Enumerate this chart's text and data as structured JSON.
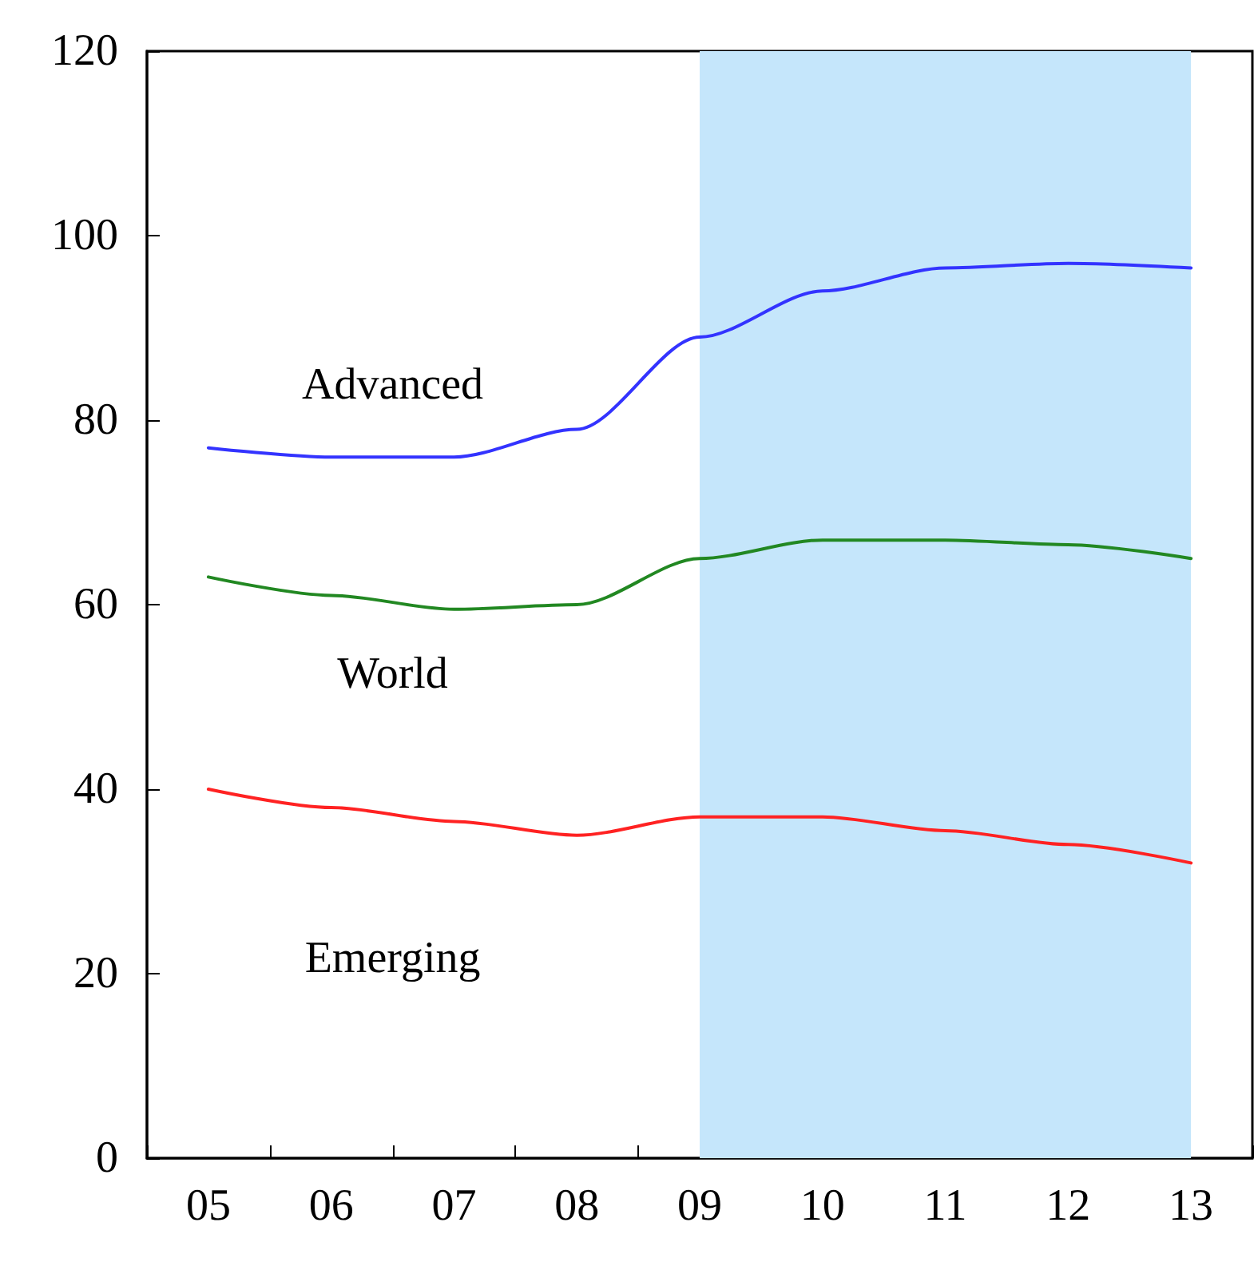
{
  "chart_data": {
    "type": "line",
    "categories": [
      "05",
      "06",
      "07",
      "08",
      "09",
      "10",
      "11",
      "12",
      "13"
    ],
    "series": [
      {
        "name": "Advanced",
        "color": "#3333ff",
        "values": [
          77,
          76,
          76,
          79,
          89,
          94,
          96.5,
          97,
          96.5
        ]
      },
      {
        "name": "World",
        "color": "#228822",
        "values": [
          63,
          61,
          59.5,
          60,
          65,
          67,
          67,
          66.5,
          65
        ]
      },
      {
        "name": "Emerging",
        "color": "#ff2222",
        "values": [
          40,
          38,
          36.5,
          35,
          37,
          37,
          35.5,
          34,
          32
        ]
      }
    ],
    "ylim": [
      0,
      120
    ],
    "yticks": [
      0,
      20,
      40,
      60,
      80,
      100,
      120
    ],
    "grid": false,
    "legend": false,
    "marker": "none",
    "line_style": "solid",
    "bands": [
      {
        "axis": "x",
        "from": "09",
        "to": "13",
        "color": "#c5e6fb"
      }
    ]
  }
}
